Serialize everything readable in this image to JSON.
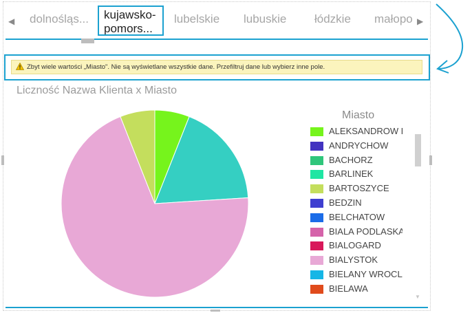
{
  "slicer": {
    "tabs": [
      "dolnośląs...",
      "kujawsko-pomors...",
      "lubelskie",
      "lubuskie",
      "łódzkie",
      "małopo"
    ],
    "selected_line1": "kujawsko-",
    "selected_line2": "pomors...",
    "left_arrow": "◀",
    "right_arrow": "▶"
  },
  "warning": {
    "text": "Zbyt wiele wartości „Miasto\". Nie są wyświetlane wszystkie dane. Przefiltruj dane lub wybierz inne pole."
  },
  "chart_title": "Liczność Nazwa Klienta x Miasto",
  "legend": {
    "title": "Miasto",
    "items": [
      {
        "label": "ALEKSANDROW K",
        "color": "#76f41c"
      },
      {
        "label": "ANDRYCHOW",
        "color": "#4233c0"
      },
      {
        "label": "BACHORZ",
        "color": "#2fc67b"
      },
      {
        "label": "BARLINEK",
        "color": "#1fe6a3"
      },
      {
        "label": "BARTOSZYCE",
        "color": "#c4de5d"
      },
      {
        "label": "BEDZIN",
        "color": "#3f3fd0"
      },
      {
        "label": "BELCHATOW",
        "color": "#1b6ce8"
      },
      {
        "label": "BIALA PODLASKA",
        "color": "#d563aa"
      },
      {
        "label": "BIALOGARD",
        "color": "#d8185a"
      },
      {
        "label": "BIALYSTOK",
        "color": "#e8a8d6"
      },
      {
        "label": "BIELANY WROCLA",
        "color": "#15b6e6"
      },
      {
        "label": "BIELAWA",
        "color": "#e04b1c"
      }
    ]
  },
  "chart_data": {
    "type": "pie",
    "title": "Liczność Nazwa Klienta x Miasto",
    "legend_title": "Miasto",
    "slices": [
      {
        "name": "ALEKSANDROW K",
        "value": 6,
        "color": "#76f41c"
      },
      {
        "name": "BARLINEK",
        "value": 18,
        "color": "#35cfc2"
      },
      {
        "name": "BIALYSTOK",
        "value": 70,
        "color": "#e8a8d6"
      },
      {
        "name": "BARTOSZYCE",
        "value": 6,
        "color": "#c4de5d"
      }
    ]
  },
  "colors": {
    "accent": "#1ba1d0",
    "warning_bg": "#fbf4bd"
  }
}
